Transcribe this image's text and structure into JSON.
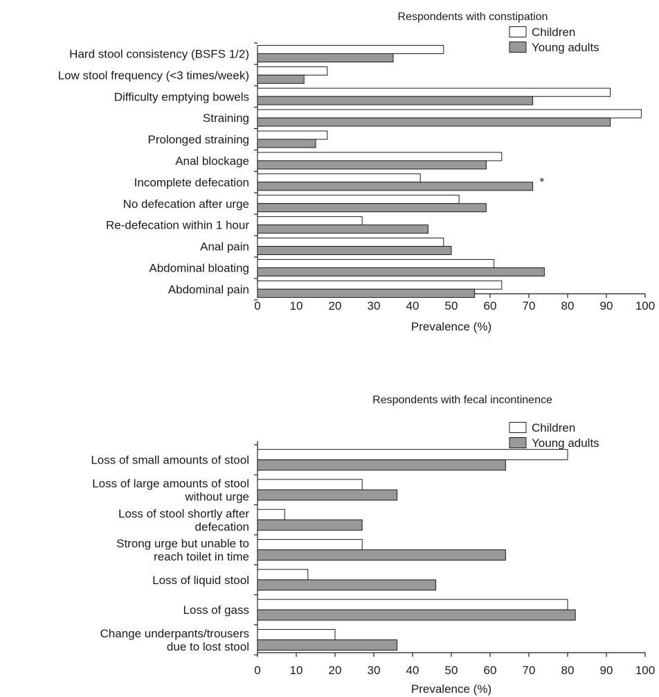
{
  "colors": {
    "children": "#ffffff",
    "young_adults": "#999999",
    "stroke": "#1a1a1a"
  },
  "chart_data": [
    {
      "type": "bar",
      "orientation": "horizontal",
      "title": "Respondents with constipation",
      "xlabel": "Prevalence (%)",
      "xlim": [
        0,
        100
      ],
      "xticks": [
        "0",
        "10",
        "20",
        "30",
        "40",
        "50",
        "60",
        "70",
        "80",
        "90",
        "100"
      ],
      "legend_position": "top-right",
      "categories": [
        [
          "Hard stool consistency (BSFS 1/2)"
        ],
        [
          "Low stool frequency (<3 times/week)"
        ],
        [
          "Difficulty emptying bowels"
        ],
        [
          "Straining"
        ],
        [
          "Prolonged straining"
        ],
        [
          "Anal blockage"
        ],
        [
          "Incomplete defecation"
        ],
        [
          "No defecation after urge"
        ],
        [
          "Re-defecation within 1 hour"
        ],
        [
          "Anal pain"
        ],
        [
          "Abdominal bloating"
        ],
        [
          "Abdominal pain"
        ]
      ],
      "series": [
        {
          "name": "Children",
          "values": [
            48,
            18,
            91,
            99,
            18,
            63,
            42,
            52,
            27,
            48,
            61,
            63
          ]
        },
        {
          "name": "Young adults",
          "values": [
            35,
            12,
            71,
            91,
            15,
            59,
            71,
            59,
            44,
            50,
            74,
            56
          ]
        }
      ],
      "annotations": [
        {
          "category_index": 6,
          "text": "*"
        }
      ]
    },
    {
      "type": "bar",
      "orientation": "horizontal",
      "title": "Respondents with fecal incontinence",
      "xlabel": "Prevalence (%)",
      "xlim": [
        0,
        100
      ],
      "xticks": [
        "0",
        "10",
        "20",
        "30",
        "40",
        "50",
        "60",
        "70",
        "80",
        "90",
        "100"
      ],
      "legend_position": "top-right",
      "categories": [
        [
          "Loss of small amounts of stool"
        ],
        [
          "Loss of large amounts of stool",
          "without urge"
        ],
        [
          "Loss of stool shortly after",
          "defecation"
        ],
        [
          "Strong urge but unable to",
          "reach toilet in time"
        ],
        [
          "Loss of liquid stool"
        ],
        [
          "Loss of gass"
        ],
        [
          "Change underpants/trousers",
          "due to lost stool"
        ]
      ],
      "series": [
        {
          "name": "Children",
          "values": [
            80,
            27,
            7,
            27,
            13,
            80,
            20
          ]
        },
        {
          "name": "Young adults",
          "values": [
            64,
            36,
            27,
            64,
            46,
            82,
            36
          ]
        }
      ],
      "annotations": []
    }
  ]
}
